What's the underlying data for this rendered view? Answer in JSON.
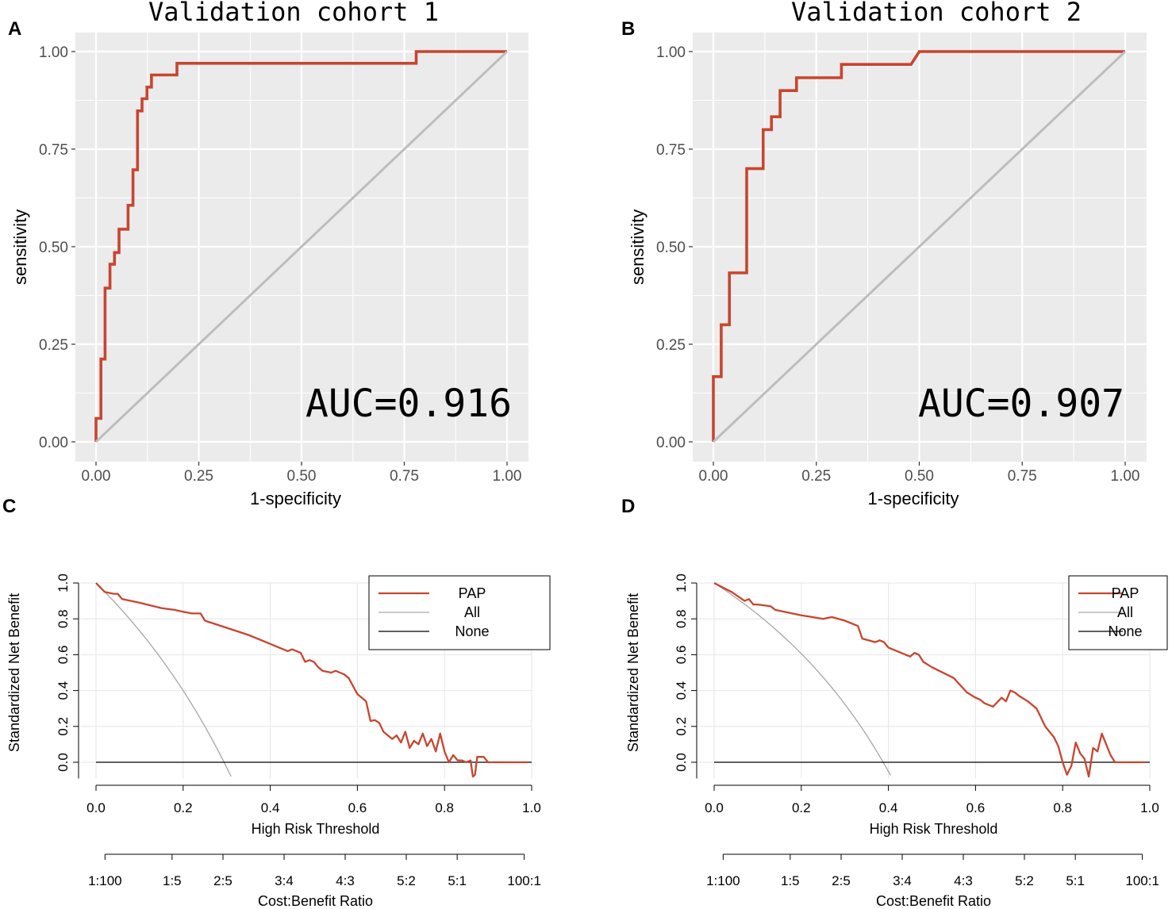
{
  "panels": {
    "A": {
      "letter": "A"
    },
    "B": {
      "letter": "B"
    },
    "C": {
      "letter": "C"
    },
    "D": {
      "letter": "D"
    }
  },
  "colors": {
    "roc_curve": "#c8452f",
    "diagonal": "#bdbdbd",
    "panel_bg": "#ebebeb",
    "grid": "#ffffff",
    "pap": "#c8452f",
    "all": "#a6a6a6",
    "none": "#000000",
    "dca_grid": "#e6e6e6"
  },
  "chart_data": [
    {
      "panel": "A",
      "type": "line",
      "title": "Validation cohort 1",
      "xlabel": "1-specificity",
      "ylabel": "sensitivity",
      "xlim": [
        0,
        1
      ],
      "ylim": [
        0,
        1
      ],
      "xticks": [
        "0.00",
        "0.25",
        "0.50",
        "0.75",
        "1.00"
      ],
      "yticks": [
        "0.00",
        "0.25",
        "0.50",
        "0.75",
        "1.00"
      ],
      "annotation": "AUC=0.916",
      "series": [
        {
          "name": "ROC",
          "x": [
            0,
            0,
            0.012,
            0.012,
            0.022,
            0.022,
            0.034,
            0.034,
            0.045,
            0.045,
            0.056,
            0.056,
            0.078,
            0.078,
            0.09,
            0.09,
            0.101,
            0.101,
            0.112,
            0.112,
            0.124,
            0.124,
            0.135,
            0.135,
            0.197,
            0.197,
            0.779,
            0.779,
            1.0
          ],
          "y": [
            0,
            0.06,
            0.06,
            0.212,
            0.212,
            0.394,
            0.394,
            0.455,
            0.455,
            0.485,
            0.485,
            0.545,
            0.545,
            0.606,
            0.606,
            0.697,
            0.697,
            0.848,
            0.848,
            0.879,
            0.879,
            0.909,
            0.909,
            0.94,
            0.94,
            0.97,
            0.97,
            1.0,
            1.0
          ]
        },
        {
          "name": "Reference",
          "x": [
            0,
            1
          ],
          "y": [
            0,
            1
          ]
        }
      ]
    },
    {
      "panel": "B",
      "type": "line",
      "title": "Validation cohort 2",
      "xlabel": "1-specificity",
      "ylabel": "sensitivity",
      "xlim": [
        0,
        1
      ],
      "ylim": [
        0,
        1
      ],
      "xticks": [
        "0.00",
        "0.25",
        "0.50",
        "0.75",
        "1.00"
      ],
      "yticks": [
        "0.00",
        "0.25",
        "0.50",
        "0.75",
        "1.00"
      ],
      "annotation": "AUC=0.907",
      "series": [
        {
          "name": "ROC",
          "x": [
            0,
            0,
            0.019,
            0.019,
            0.039,
            0.039,
            0.081,
            0.081,
            0.121,
            0.121,
            0.141,
            0.141,
            0.162,
            0.162,
            0.202,
            0.202,
            0.311,
            0.311,
            0.48,
            0.5,
            1.0
          ],
          "y": [
            0,
            0.167,
            0.167,
            0.3,
            0.3,
            0.433,
            0.433,
            0.7,
            0.7,
            0.8,
            0.8,
            0.833,
            0.833,
            0.9,
            0.9,
            0.933,
            0.933,
            0.967,
            0.967,
            1.0,
            1.0
          ]
        },
        {
          "name": "Reference",
          "x": [
            0,
            1
          ],
          "y": [
            0,
            1
          ]
        }
      ]
    },
    {
      "panel": "C",
      "type": "line",
      "xlabel": "High Risk Threshold",
      "ylabel": "Standardized Net Benefit",
      "xlabel2": "Cost:Benefit Ratio",
      "xlim": [
        0,
        1
      ],
      "ylim": [
        -0.09,
        1.0
      ],
      "xticks": [
        "0.0",
        "0.2",
        "0.4",
        "0.6",
        "0.8",
        "1.0"
      ],
      "yticks": [
        "0.0",
        "0.2",
        "0.4",
        "0.6",
        "0.8",
        "1.0"
      ],
      "ratio_ticks": [
        "1:100",
        "1:5",
        "2:5",
        "3:4",
        "4:3",
        "5:2",
        "5:1",
        "100:1"
      ],
      "legend": [
        "PAP",
        "All",
        "None"
      ],
      "series": [
        {
          "name": "PAP",
          "x": [
            0,
            0.02,
            0.04,
            0.05,
            0.06,
            0.1,
            0.15,
            0.18,
            0.2,
            0.22,
            0.24,
            0.25,
            0.3,
            0.35,
            0.4,
            0.44,
            0.45,
            0.47,
            0.48,
            0.49,
            0.5,
            0.51,
            0.52,
            0.54,
            0.55,
            0.56,
            0.57,
            0.58,
            0.6,
            0.61,
            0.62,
            0.63,
            0.64,
            0.65,
            0.66,
            0.67,
            0.68,
            0.69,
            0.7,
            0.71,
            0.72,
            0.73,
            0.74,
            0.75,
            0.76,
            0.77,
            0.78,
            0.79,
            0.8,
            0.81,
            0.82,
            0.83,
            0.84,
            0.85,
            0.86,
            0.865,
            0.87,
            0.875,
            0.88,
            0.89,
            0.9,
            0.91,
            0.99
          ],
          "y": [
            1.0,
            0.95,
            0.94,
            0.94,
            0.91,
            0.89,
            0.86,
            0.85,
            0.84,
            0.83,
            0.83,
            0.79,
            0.75,
            0.71,
            0.66,
            0.62,
            0.63,
            0.61,
            0.56,
            0.57,
            0.56,
            0.53,
            0.51,
            0.5,
            0.51,
            0.5,
            0.49,
            0.47,
            0.38,
            0.36,
            0.34,
            0.23,
            0.235,
            0.22,
            0.17,
            0.15,
            0.13,
            0.15,
            0.11,
            0.17,
            0.08,
            0.12,
            0.1,
            0.16,
            0.09,
            0.13,
            0.06,
            0.16,
            0.06,
            0.0,
            0.04,
            0.01,
            0.01,
            0.0,
            0.01,
            -0.08,
            -0.07,
            0.03,
            0.03,
            0.03,
            0.0,
            0.0,
            0.0
          ]
        },
        {
          "name": "All",
          "prevalence": 0.294
        },
        {
          "name": "None",
          "x": [
            0,
            1
          ],
          "y": [
            0,
            0
          ]
        }
      ]
    },
    {
      "panel": "D",
      "type": "line",
      "xlabel": "High Risk Threshold",
      "ylabel": "Standardized Net Benefit",
      "xlabel2": "Cost:Benefit Ratio",
      "xlim": [
        0,
        1
      ],
      "ylim": [
        -0.09,
        1.0
      ],
      "xticks": [
        "0.0",
        "0.2",
        "0.4",
        "0.6",
        "0.8",
        "1.0"
      ],
      "yticks": [
        "0.0",
        "0.2",
        "0.4",
        "0.6",
        "0.8",
        "1.0"
      ],
      "ratio_ticks": [
        "1:100",
        "1:5",
        "2:5",
        "3:4",
        "4:3",
        "5:2",
        "5:1",
        "100:1"
      ],
      "legend": [
        "PAP",
        "All",
        "None"
      ],
      "series": [
        {
          "name": "PAP",
          "x": [
            0,
            0.04,
            0.07,
            0.08,
            0.09,
            0.1,
            0.13,
            0.14,
            0.2,
            0.25,
            0.27,
            0.3,
            0.33,
            0.34,
            0.37,
            0.38,
            0.39,
            0.4,
            0.45,
            0.46,
            0.47,
            0.48,
            0.5,
            0.55,
            0.58,
            0.6,
            0.61,
            0.62,
            0.64,
            0.66,
            0.67,
            0.68,
            0.69,
            0.7,
            0.72,
            0.74,
            0.75,
            0.76,
            0.77,
            0.78,
            0.79,
            0.8,
            0.81,
            0.82,
            0.83,
            0.84,
            0.85,
            0.86,
            0.87,
            0.88,
            0.89,
            0.9,
            0.91,
            0.92,
            0.99
          ],
          "y": [
            1.0,
            0.95,
            0.9,
            0.91,
            0.88,
            0.88,
            0.87,
            0.85,
            0.82,
            0.8,
            0.81,
            0.79,
            0.76,
            0.69,
            0.67,
            0.68,
            0.67,
            0.64,
            0.59,
            0.61,
            0.6,
            0.56,
            0.53,
            0.47,
            0.39,
            0.36,
            0.35,
            0.33,
            0.31,
            0.36,
            0.34,
            0.4,
            0.39,
            0.37,
            0.34,
            0.3,
            0.25,
            0.2,
            0.17,
            0.14,
            0.09,
            0.0,
            -0.07,
            -0.02,
            0.11,
            0.05,
            0.02,
            -0.08,
            0.08,
            0.06,
            0.16,
            0.1,
            0.04,
            0.0,
            0.0
          ]
        },
        {
          "name": "All",
          "prevalence": 0.388
        },
        {
          "name": "None",
          "x": [
            0,
            1
          ],
          "y": [
            0,
            0
          ]
        }
      ]
    }
  ]
}
